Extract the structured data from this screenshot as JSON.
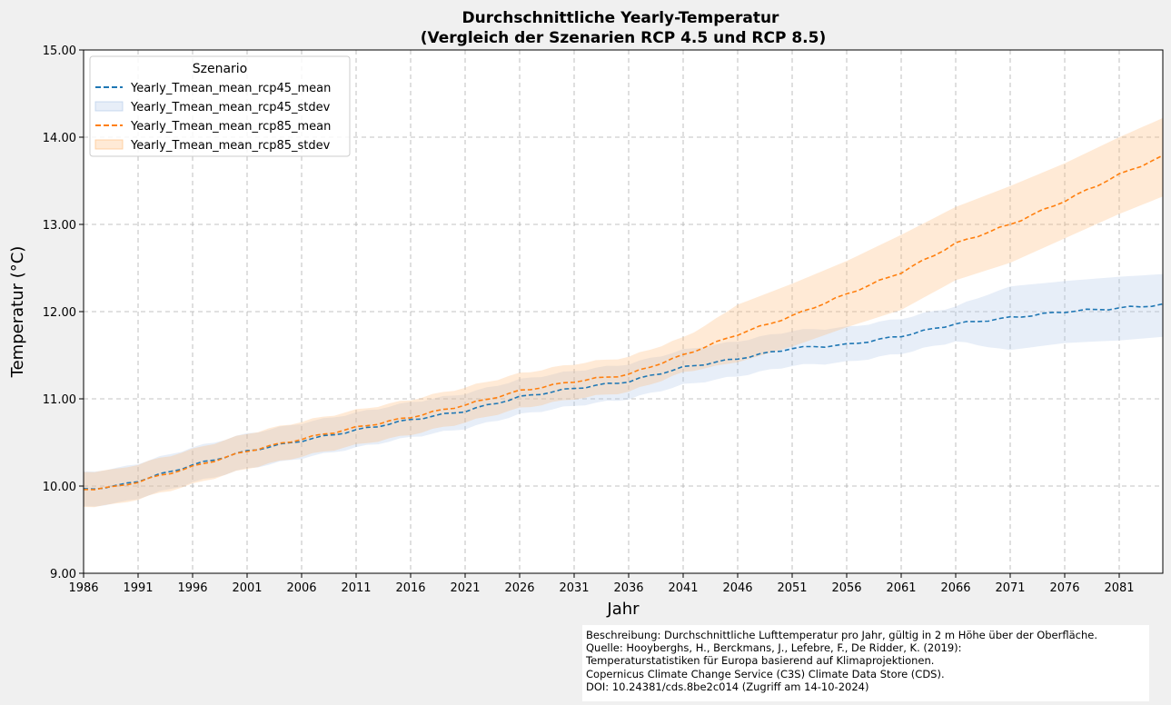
{
  "chart_data": {
    "type": "line",
    "title_line1": "Durchschnittliche Yearly-Temperatur",
    "title_line2": "(Vergleich der Szenarien RCP 4.5 und RCP 8.5)",
    "xlabel": "Jahr",
    "ylabel": "Temperatur (°C)",
    "xlim": [
      1986,
      2085
    ],
    "ylim": [
      9.0,
      15.0
    ],
    "x_ticks": [
      1986,
      1991,
      1996,
      2001,
      2006,
      2011,
      2016,
      2021,
      2026,
      2031,
      2036,
      2041,
      2046,
      2051,
      2056,
      2061,
      2066,
      2071,
      2076,
      2081
    ],
    "y_ticks": [
      "9.00",
      "10.00",
      "11.00",
      "12.00",
      "13.00",
      "14.00",
      "15.00"
    ],
    "grid": true,
    "legend": {
      "title": "Szenario",
      "position": "top-left",
      "entries": [
        "Yearly_Tmean_mean_rcp45_mean",
        "Yearly_Tmean_mean_rcp45_stdev",
        "Yearly_Tmean_mean_rcp85_mean",
        "Yearly_Tmean_mean_rcp85_stdev"
      ]
    },
    "series": [
      {
        "name": "Yearly_Tmean_mean_rcp45_mean",
        "band_name": "Yearly_Tmean_mean_rcp45_stdev",
        "color": "#1f77b4",
        "band_color": "#aec7e8",
        "keypoints": [
          [
            1986,
            9.96
          ],
          [
            1989,
            10.0
          ],
          [
            1991,
            10.06
          ],
          [
            1996,
            10.24
          ],
          [
            2001,
            10.4
          ],
          [
            2006,
            10.52
          ],
          [
            2011,
            10.64
          ],
          [
            2016,
            10.76
          ],
          [
            2021,
            10.86
          ],
          [
            2026,
            11.02
          ],
          [
            2031,
            11.12
          ],
          [
            2036,
            11.2
          ],
          [
            2041,
            11.36
          ],
          [
            2046,
            11.46
          ],
          [
            2051,
            11.58
          ],
          [
            2056,
            11.62
          ],
          [
            2061,
            11.72
          ],
          [
            2066,
            11.86
          ],
          [
            2071,
            11.93
          ],
          [
            2076,
            12.0
          ],
          [
            2081,
            12.04
          ],
          [
            2085,
            12.08
          ]
        ],
        "stdev": 0.2,
        "band_upper_overrides": [
          [
            2066,
            12.22
          ],
          [
            2071,
            12.29
          ],
          [
            2076,
            12.35
          ],
          [
            2081,
            12.4
          ],
          [
            2085,
            12.43
          ]
        ],
        "band_lower_overrides": [
          [
            2066,
            11.47
          ],
          [
            2071,
            11.56
          ],
          [
            2076,
            11.64
          ],
          [
            2081,
            11.67
          ],
          [
            2085,
            11.71
          ]
        ]
      },
      {
        "name": "Yearly_Tmean_mean_rcp85_mean",
        "band_name": "Yearly_Tmean_mean_rcp85_stdev",
        "color": "#ff7f0e",
        "band_color": "#ffbb78",
        "keypoints": [
          [
            1986,
            9.96
          ],
          [
            1989,
            9.99
          ],
          [
            1991,
            10.05
          ],
          [
            1996,
            10.22
          ],
          [
            2001,
            10.4
          ],
          [
            2006,
            10.54
          ],
          [
            2011,
            10.67
          ],
          [
            2016,
            10.79
          ],
          [
            2021,
            10.93
          ],
          [
            2026,
            11.09
          ],
          [
            2031,
            11.2
          ],
          [
            2036,
            11.28
          ],
          [
            2041,
            11.5
          ],
          [
            2046,
            11.74
          ],
          [
            2051,
            11.95
          ],
          [
            2056,
            12.2
          ],
          [
            2061,
            12.45
          ],
          [
            2066,
            12.78
          ],
          [
            2071,
            13.0
          ],
          [
            2076,
            13.27
          ],
          [
            2081,
            13.57
          ],
          [
            2085,
            13.78
          ]
        ],
        "stdev": 0.2,
        "band_upper_overrides": [
          [
            2041,
            11.8
          ],
          [
            2046,
            12.08
          ],
          [
            2051,
            12.32
          ],
          [
            2056,
            12.58
          ],
          [
            2061,
            12.88
          ],
          [
            2066,
            13.2
          ],
          [
            2071,
            13.44
          ],
          [
            2076,
            13.7
          ],
          [
            2081,
            14.0
          ],
          [
            2085,
            14.22
          ]
        ],
        "band_lower_overrides": [
          [
            2041,
            11.2
          ],
          [
            2046,
            11.42
          ],
          [
            2051,
            11.6
          ],
          [
            2056,
            11.82
          ],
          [
            2061,
            12.02
          ],
          [
            2066,
            12.36
          ],
          [
            2071,
            12.56
          ],
          [
            2076,
            12.84
          ],
          [
            2081,
            13.12
          ],
          [
            2085,
            13.32
          ]
        ]
      }
    ]
  },
  "caption": {
    "lines": [
      "Beschreibung: Durchschnittliche Lufttemperatur pro Jahr, gültig in 2 m Höhe über der Oberfläche.",
      "Quelle: Hooyberghs, H., Berckmans, J., Lefebre, F., De Ridder, K. (2019):",
      "Temperaturstatistiken für Europa basierend auf Klimaprojektionen.",
      "Copernicus Climate Change Service (C3S) Climate Data Store (CDS).",
      "DOI: 10.24381/cds.8be2c014 (Zugriff am 14-10-2024)"
    ]
  }
}
